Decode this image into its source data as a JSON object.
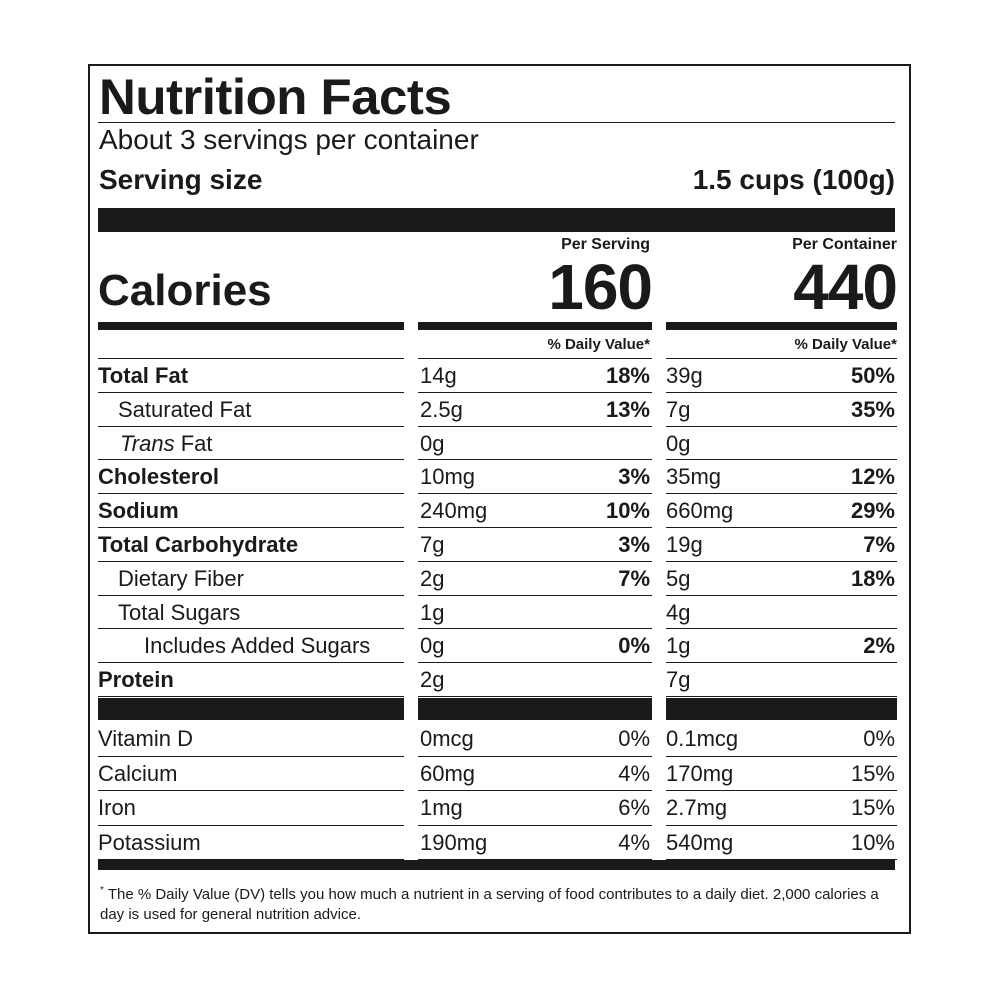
{
  "title": "Nutrition Facts",
  "servings_per_container": "About 3 servings per container",
  "serving_size_label": "Serving size",
  "serving_size_value": "1.5 cups (100g)",
  "per_serving_label": "Per Serving",
  "per_container_label": "Per Container",
  "calories_label": "Calories",
  "calories_per_serving": "160",
  "calories_per_container": "440",
  "dv_label": "% Daily Value*",
  "nutrients": [
    {
      "name": "Total Fat",
      "serving_amt": "14g",
      "serving_dv": "18%",
      "container_amt": "39g",
      "container_dv": "50%"
    },
    {
      "name": "Saturated Fat",
      "serving_amt": "2.5g",
      "serving_dv": "13%",
      "container_amt": "7g",
      "container_dv": "35%"
    },
    {
      "name_italic": "Trans",
      "name_rest": " Fat",
      "serving_amt": "0g",
      "serving_dv": "",
      "container_amt": "0g",
      "container_dv": ""
    },
    {
      "name": "Cholesterol",
      "serving_amt": "10mg",
      "serving_dv": "3%",
      "container_amt": "35mg",
      "container_dv": "12%"
    },
    {
      "name": "Sodium",
      "serving_amt": "240mg",
      "serving_dv": "10%",
      "container_amt": "660mg",
      "container_dv": "29%"
    },
    {
      "name": "Total Carbohydrate",
      "serving_amt": "7g",
      "serving_dv": "3%",
      "container_amt": "19g",
      "container_dv": "7%"
    },
    {
      "name": "Dietary Fiber",
      "serving_amt": "2g",
      "serving_dv": "7%",
      "container_amt": "5g",
      "container_dv": "18%"
    },
    {
      "name": "Total Sugars",
      "serving_amt": "1g",
      "serving_dv": "",
      "container_amt": "4g",
      "container_dv": ""
    },
    {
      "name": "Includes Added Sugars",
      "serving_amt": "0g",
      "serving_dv": "0%",
      "container_amt": "1g",
      "container_dv": "2%"
    },
    {
      "name": "Protein",
      "serving_amt": "2g",
      "serving_dv": "",
      "container_amt": "7g",
      "container_dv": ""
    }
  ],
  "vitamins": [
    {
      "name": "Vitamin D",
      "serving_amt": "0mcg",
      "serving_dv": "0%",
      "container_amt": "0.1mcg",
      "container_dv": "0%"
    },
    {
      "name": "Calcium",
      "serving_amt": "60mg",
      "serving_dv": "4%",
      "container_amt": "170mg",
      "container_dv": "15%"
    },
    {
      "name": "Iron",
      "serving_amt": "1mg",
      "serving_dv": "6%",
      "container_amt": "2.7mg",
      "container_dv": "15%"
    },
    {
      "name": "Potassium",
      "serving_amt": "190mg",
      "serving_dv": "4%",
      "container_amt": "540mg",
      "container_dv": "10%"
    }
  ],
  "footnote_mark": "*",
  "footnote": "The % Daily Value (DV) tells you how much a nutrient in a serving of food contributes to a daily diet. 2,000 calories a day is used for general nutrition advice."
}
